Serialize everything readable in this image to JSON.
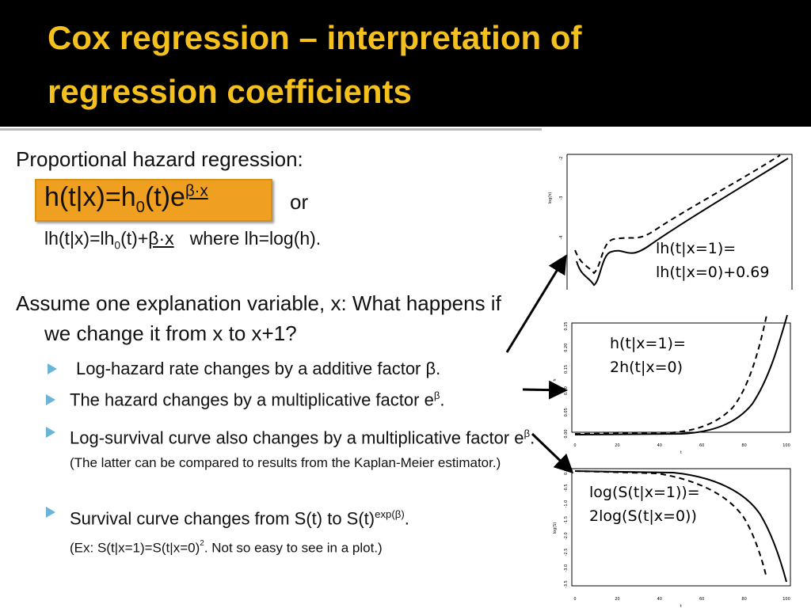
{
  "title": [
    "Cox regression – interpretation of",
    "regression coefficients"
  ],
  "intro": "Proportional hazard regression:",
  "formula1": [
    "h(t|x)=h",
    "0",
    "(t)e",
    "β·x"
  ],
  "or": "or",
  "formula2": [
    "lh(t|x)=lh",
    "0",
    "(t)+",
    "β·x",
    "where lh=log(h)."
  ],
  "assume": "Assume one explanation variable, x: What happens if we change it from x to x+1?",
  "bullets": [
    [
      "Log-hazard rate changes by a additive factor ",
      "β",
      "."
    ],
    [
      "The hazard changes by a multiplicative factor e",
      "β",
      "."
    ],
    [
      "Log-survival curve also changes by a multiplicative factor e",
      "β",
      ". ",
      "(The latter can be compared to results from the Kaplan-Meier estimator.)"
    ],
    [
      "Survival curve changes from S(t) to S(t)",
      "exp(β)",
      ".",
      "(Ex: S(t|x=1)=S(t|x=0)",
      "2",
      ". Not so easy to see in a plot.)"
    ]
  ],
  "plots": [
    {
      "ylabel": "log(h)",
      "yticks": [
        "-2",
        "-3",
        "-4"
      ],
      "note": [
        "lh(t|x=1)=",
        "lh(t|x=0)+0.69"
      ]
    },
    {
      "ylabel": "h",
      "xlabel": "t",
      "xticks": [
        "0",
        "20",
        "40",
        "60",
        "80",
        "100"
      ],
      "yticks": [
        "0.25",
        "0.20",
        "0.15",
        "0.10",
        "0.05",
        "0.00"
      ],
      "note": [
        "h(t|x=1)=",
        "2h(t|x=0)"
      ]
    },
    {
      "ylabel": "log(S)",
      "xlabel": "t",
      "xticks": [
        "0",
        "20",
        "40",
        "60",
        "80",
        "100"
      ],
      "yticks": [
        "0.0",
        "-0.5",
        "-1.0",
        "-1.5",
        "-2.0",
        "-2.5",
        "-3.0",
        "-3.5"
      ],
      "note": [
        "log(S(t|x=1))=",
        "2log(S(t|x=0))"
      ]
    }
  ]
}
